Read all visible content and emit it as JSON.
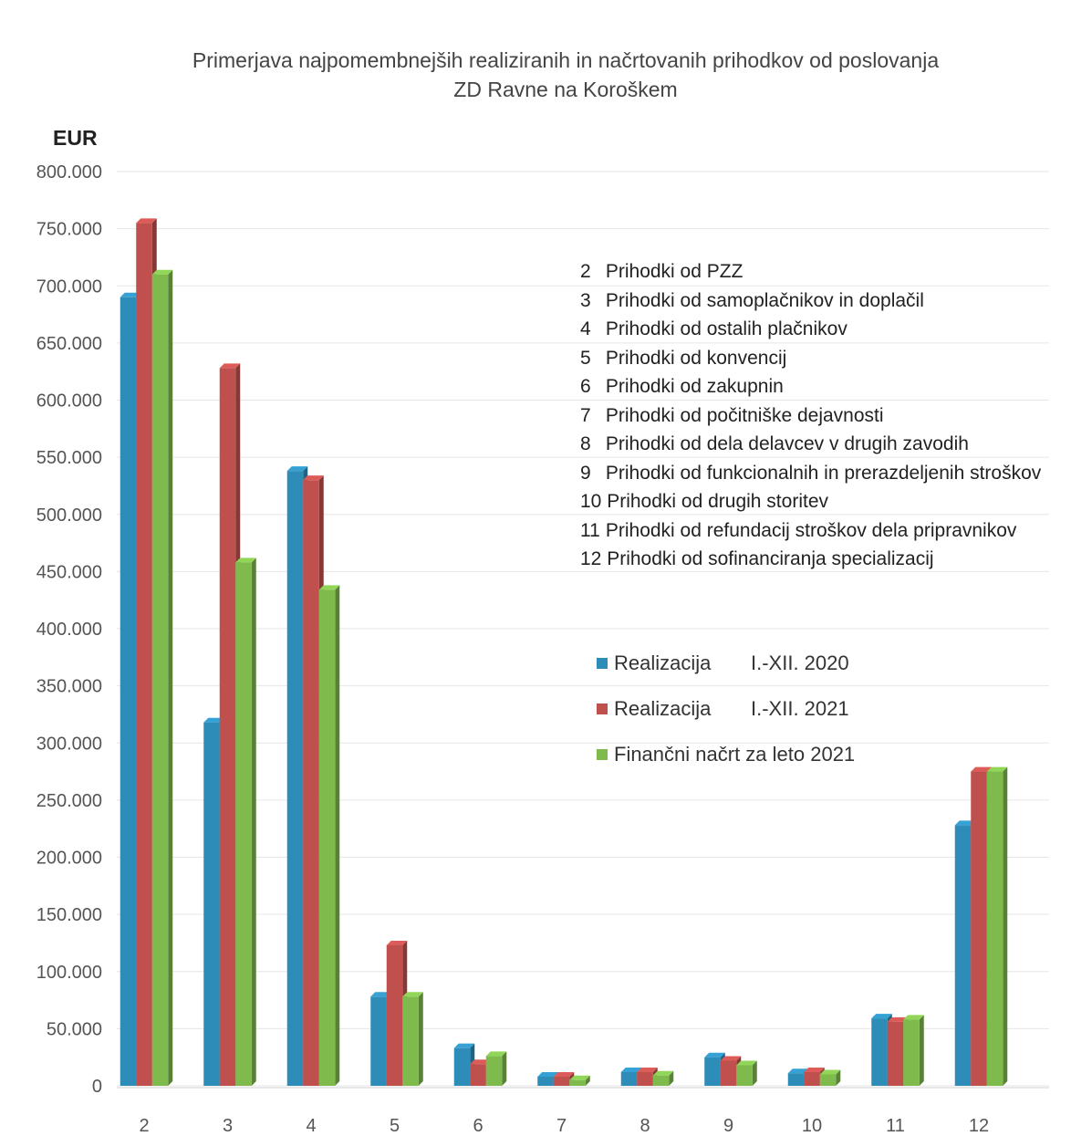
{
  "chart_data": {
    "type": "bar",
    "title": "Primerjava najpomembnejših realiziranih in načrtovanih prihodkov od poslovanja",
    "subtitle": "ZD Ravne na Koroškem",
    "ylabel": "EUR",
    "ylim": [
      0,
      800000
    ],
    "yticks": [
      "0",
      "50.000",
      "100.000",
      "150.000",
      "200.000",
      "250.000",
      "300.000",
      "350.000",
      "400.000",
      "450.000",
      "500.000",
      "550.000",
      "600.000",
      "650.000",
      "700.000",
      "750.000",
      "800.000"
    ],
    "grid": true,
    "categories": [
      "2",
      "3",
      "4",
      "5",
      "6",
      "7",
      "8",
      "9",
      "10",
      "11",
      "12"
    ],
    "series": [
      {
        "name": "Realizacija",
        "period": "I.-XII. 2020",
        "color": "#2e8cb8",
        "values": [
          690000,
          318000,
          538000,
          78000,
          33000,
          8000,
          12000,
          25000,
          11000,
          59000,
          228000
        ]
      },
      {
        "name": "Realizacija",
        "period": "I.-XII. 2021",
        "color": "#c0504d",
        "values": [
          755000,
          628000,
          530000,
          123000,
          19000,
          8000,
          12000,
          22000,
          12000,
          56000,
          275000
        ]
      },
      {
        "name": "Finančni načrt za leto 2021",
        "period": "",
        "color": "#7fba4d",
        "values": [
          710000,
          458000,
          434000,
          78000,
          26000,
          5000,
          9000,
          18000,
          10000,
          58000,
          275000
        ]
      }
    ],
    "category_legend": [
      {
        "num": "2",
        "label": "Prihodki od PZZ"
      },
      {
        "num": "3",
        "label": "Prihodki od samoplačnikov in doplačil"
      },
      {
        "num": "4",
        "label": "Prihodki od ostalih plačnikov"
      },
      {
        "num": "5",
        "label": "Prihodki od konvencij"
      },
      {
        "num": "6",
        "label": "Prihodki od zakupnin"
      },
      {
        "num": "7",
        "label": "Prihodki od počitniške dejavnosti"
      },
      {
        "num": "8",
        "label": "Prihodki od dela delavcev v drugih zavodih"
      },
      {
        "num": "9",
        "label": "Prihodki od funkcionalnih in prerazdeljenih stroškov"
      },
      {
        "num": "10",
        "label": "Prihodki od drugih storitev"
      },
      {
        "num": "11",
        "label": "Prihodki od refundacij stroškov dela pripravnikov"
      },
      {
        "num": "12",
        "label": "Prihodki od sofinanciranja specializacij"
      }
    ]
  }
}
